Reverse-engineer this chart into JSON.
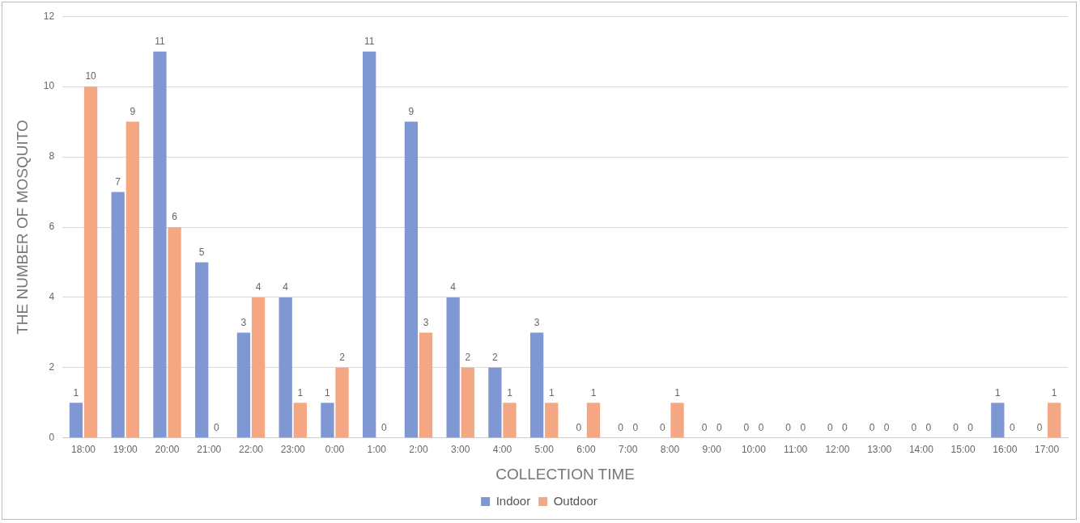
{
  "chart_data": {
    "type": "bar",
    "xlabel": "COLLECTION TIME",
    "ylabel": "THE NUMBER OF MOSQUITO",
    "categories": [
      "18:00",
      "19:00",
      "20:00",
      "21:00",
      "22:00",
      "23:00",
      "0:00",
      "1:00",
      "2:00",
      "3:00",
      "4:00",
      "5:00",
      "6:00",
      "7:00",
      "8:00",
      "9:00",
      "10:00",
      "11:00",
      "12:00",
      "13:00",
      "14:00",
      "15:00",
      "16:00",
      "17:00"
    ],
    "series": [
      {
        "name": "Indoor",
        "color": "#7f97d3",
        "values": [
          1,
          7,
          11,
          5,
          3,
          4,
          1,
          11,
          9,
          4,
          2,
          3,
          0,
          0,
          0,
          0,
          0,
          0,
          0,
          0,
          0,
          0,
          1,
          0
        ]
      },
      {
        "name": "Outdoor",
        "color": "#f5a683",
        "values": [
          10,
          9,
          6,
          0,
          4,
          1,
          2,
          0,
          3,
          2,
          1,
          1,
          1,
          0,
          1,
          0,
          0,
          0,
          0,
          0,
          0,
          0,
          0,
          1
        ]
      }
    ],
    "ylim": [
      0,
      12
    ],
    "yticks": [
      0,
      2,
      4,
      6,
      8,
      10,
      12
    ],
    "grid": "y",
    "legend": "bottom",
    "data_labels": true
  }
}
